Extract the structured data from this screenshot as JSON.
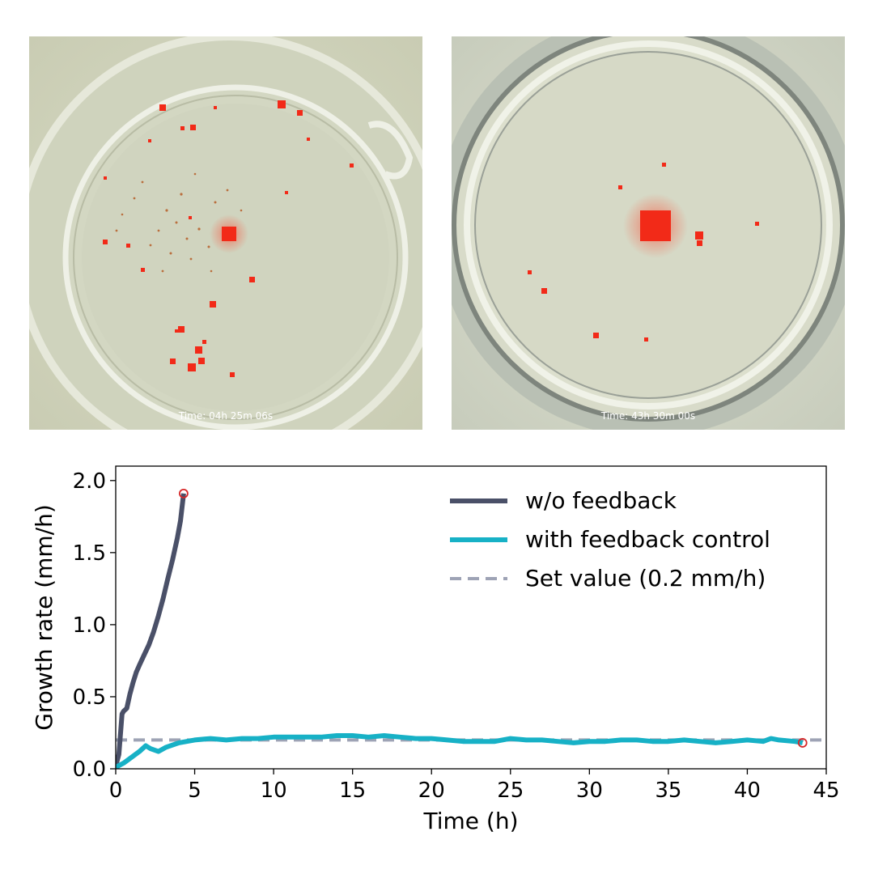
{
  "photos": [
    {
      "time_label": "Time: 04h 25m 06s"
    },
    {
      "time_label": "Time: 43h 30m 00s"
    }
  ],
  "colors": {
    "without_feedback": "#4a5068",
    "with_feedback": "#17b1c6",
    "set_value": "#9ea3b5",
    "endpoint_marker": "#d62728",
    "crystal": "#f22a18"
  },
  "chart_data": {
    "type": "line",
    "xlabel": "Time (h)",
    "ylabel": "Growth rate (mm/h)",
    "xlim": [
      0,
      45
    ],
    "ylim": [
      0,
      2.1
    ],
    "xticks": [
      0,
      5,
      10,
      15,
      20,
      25,
      30,
      35,
      40,
      45
    ],
    "yticks": [
      0.0,
      0.5,
      1.0,
      1.5,
      2.0
    ],
    "xtick_labels": [
      "0",
      "5",
      "10",
      "15",
      "20",
      "25",
      "30",
      "35",
      "40",
      "45"
    ],
    "ytick_labels": [
      "0.0",
      "0.5",
      "1.0",
      "1.5",
      "2.0"
    ],
    "grid": false,
    "legend_position": "top-right",
    "legend": [
      "w/o feedback",
      "with feedback control",
      "Set value (0.2 mm/h)"
    ],
    "series": [
      {
        "name": "w/o feedback",
        "x": [
          0.0,
          0.2,
          0.4,
          0.5,
          0.7,
          0.9,
          1.1,
          1.3,
          1.5,
          1.8,
          2.1,
          2.4,
          2.7,
          3.0,
          3.3,
          3.6,
          3.9,
          4.1,
          4.3
        ],
        "y": [
          0.02,
          0.1,
          0.38,
          0.4,
          0.42,
          0.52,
          0.6,
          0.67,
          0.72,
          0.79,
          0.86,
          0.95,
          1.06,
          1.18,
          1.32,
          1.45,
          1.6,
          1.72,
          1.91
        ]
      },
      {
        "name": "with feedback control",
        "x": [
          0.0,
          0.5,
          1.0,
          1.5,
          1.9,
          2.2,
          2.7,
          3.2,
          4.0,
          5.0,
          6.0,
          7.0,
          8.0,
          9.0,
          10.0,
          11.0,
          12.0,
          13.0,
          14.0,
          15.0,
          16.0,
          17.0,
          18.0,
          19.0,
          20.0,
          21.0,
          22.0,
          23.0,
          24.0,
          25.0,
          26.0,
          27.0,
          28.0,
          29.0,
          30.0,
          31.0,
          32.0,
          33.0,
          34.0,
          35.0,
          36.0,
          37.0,
          38.0,
          39.0,
          40.0,
          41.0,
          41.5,
          42.0,
          43.0,
          43.5
        ],
        "y": [
          0.01,
          0.04,
          0.08,
          0.12,
          0.16,
          0.14,
          0.12,
          0.15,
          0.18,
          0.2,
          0.21,
          0.2,
          0.21,
          0.21,
          0.22,
          0.22,
          0.22,
          0.22,
          0.23,
          0.23,
          0.22,
          0.23,
          0.22,
          0.21,
          0.21,
          0.2,
          0.19,
          0.19,
          0.19,
          0.21,
          0.2,
          0.2,
          0.19,
          0.18,
          0.19,
          0.19,
          0.2,
          0.2,
          0.19,
          0.19,
          0.2,
          0.19,
          0.18,
          0.19,
          0.2,
          0.19,
          0.21,
          0.2,
          0.19,
          0.18
        ]
      },
      {
        "name": "Set value (0.2 mm/h)",
        "x": [
          0,
          45
        ],
        "y": [
          0.2,
          0.2
        ]
      }
    ],
    "endpoints": [
      {
        "series": "w/o feedback",
        "x": 4.3,
        "y": 1.91
      },
      {
        "series": "with feedback control",
        "x": 43.5,
        "y": 0.18
      }
    ]
  }
}
